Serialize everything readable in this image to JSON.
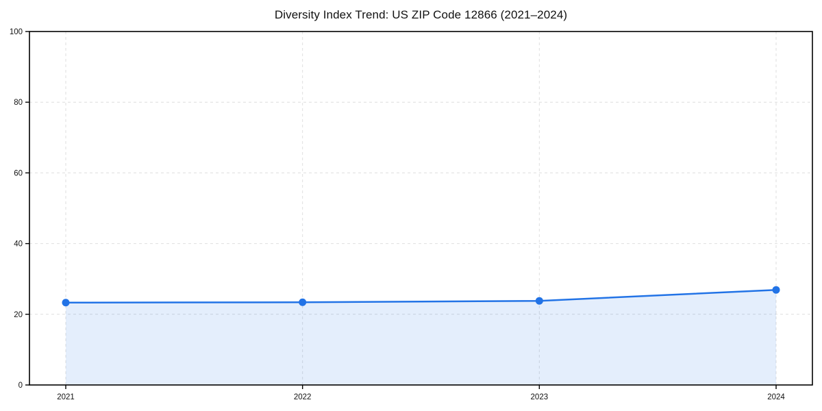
{
  "chart_data": {
    "type": "area",
    "title": "Diversity Index Trend: US ZIP Code 12866 (2021–2024)",
    "x": [
      "2021",
      "2022",
      "2023",
      "2024"
    ],
    "series": [
      {
        "name": "Diversity Index",
        "values": [
          23.3,
          23.4,
          23.8,
          26.9
        ]
      }
    ],
    "xlabel": "",
    "ylabel": "",
    "ylim": [
      0,
      100
    ],
    "yticks": [
      0,
      20,
      40,
      60,
      80,
      100
    ],
    "grid": true,
    "grid_style": "dashed",
    "legend": false,
    "marker": "circle",
    "colors": {
      "line": "#2273e6",
      "fill": "#2273e6",
      "grid": "#dedede",
      "axis": "#000000",
      "text": "#111111",
      "background": "#ffffff"
    },
    "fill_opacity": 0.12
  }
}
